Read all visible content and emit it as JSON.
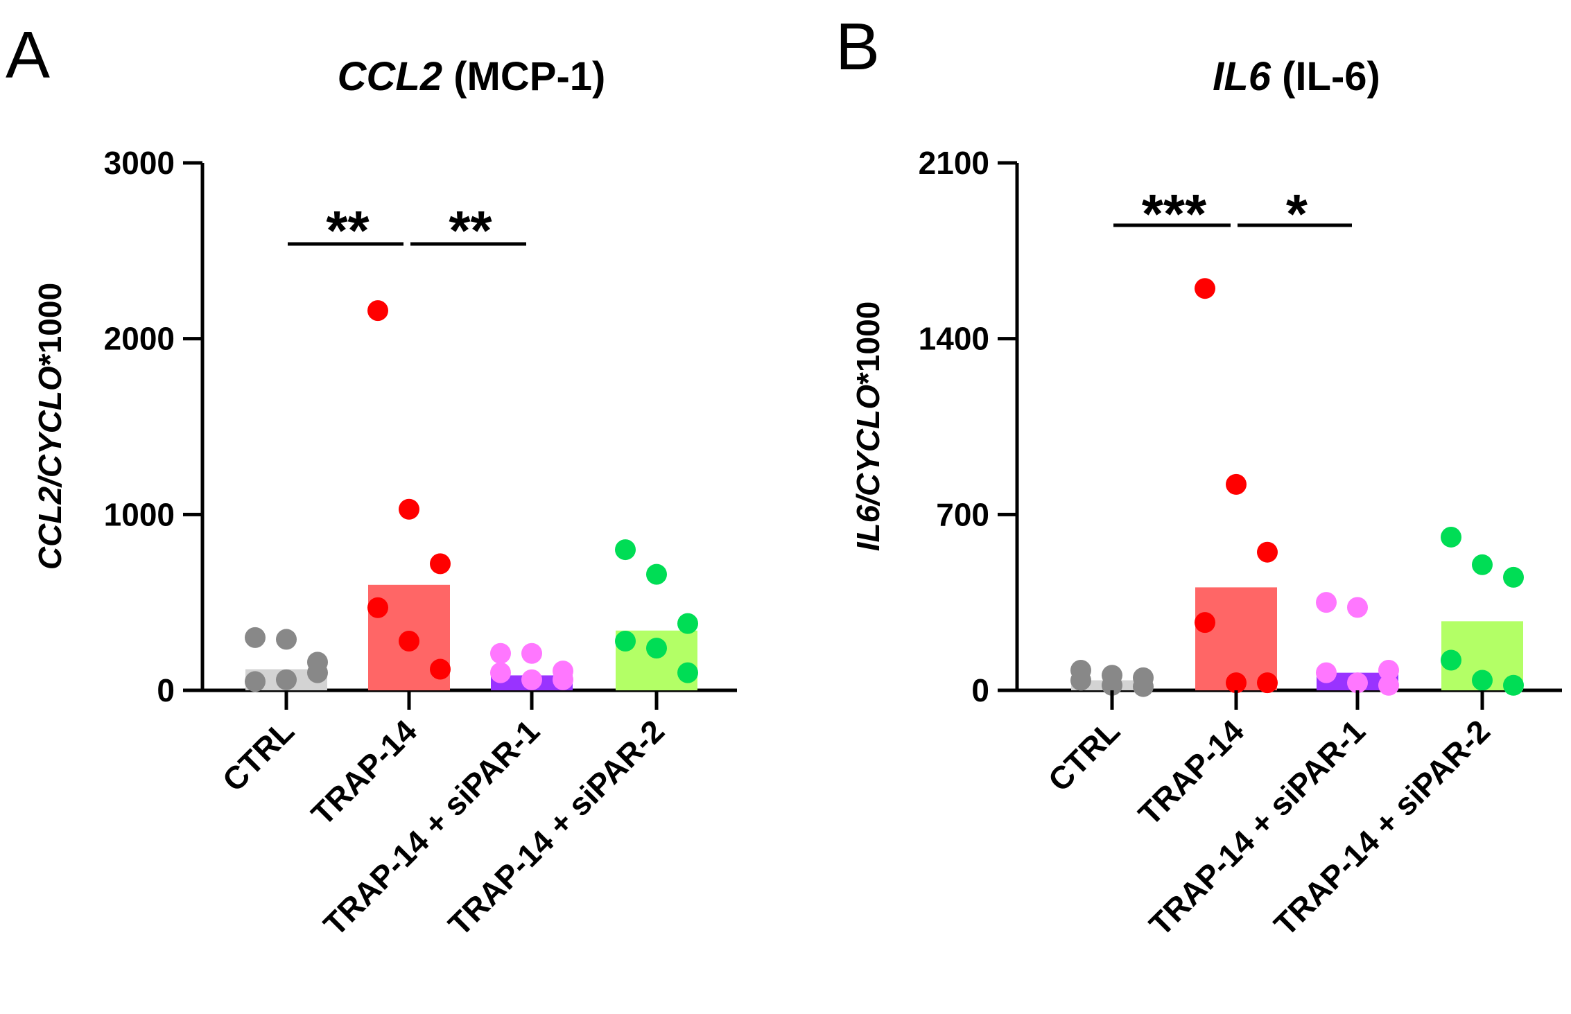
{
  "figure": {
    "panels": [
      {
        "letter": "A",
        "title_italic": "CCL2",
        "title_rest": " (MCP-1)",
        "ylabel_italic": "CCL2/CYCLO",
        "ylabel_rest": "*1000"
      },
      {
        "letter": "B",
        "title_italic": "IL6",
        "title_rest": " (IL-6)",
        "ylabel_italic": "IL6/CYCLO",
        "ylabel_rest": "*1000"
      }
    ]
  },
  "chart_data": [
    {
      "type": "bar",
      "panel": "A",
      "title": "CCL2 (MCP-1)",
      "ylabel": "CCL2/CYCLO*1000",
      "xlabel": "",
      "ylim": [
        0,
        3000
      ],
      "yticks": [
        "0",
        "1000",
        "2000",
        "3000"
      ],
      "categories": [
        "CTRL",
        "TRAP-14",
        "TRAP-14 + siPAR-1",
        "TRAP-14 + siPAR-2"
      ],
      "values": [
        120,
        600,
        85,
        340
      ],
      "bar_colors": [
        "#d3d3d3",
        "#ff6666",
        "#9933ff",
        "#b3ff66"
      ],
      "point_colors": [
        "#888888",
        "#ff0000",
        "#ff77ff",
        "#00dd55"
      ],
      "points": [
        [
          300,
          290,
          160,
          50,
          60,
          100
        ],
        [
          2160,
          1030,
          720,
          470,
          280,
          120
        ],
        [
          210,
          210,
          110,
          100,
          60,
          60
        ],
        [
          800,
          660,
          380,
          280,
          240,
          100
        ]
      ],
      "significance": [
        {
          "from": 0,
          "to": 1,
          "label": "**"
        },
        {
          "from": 1,
          "to": 2,
          "label": "**"
        }
      ]
    },
    {
      "type": "bar",
      "panel": "B",
      "title": "IL6 (IL-6)",
      "ylabel": "IL6/CYCLO*1000",
      "xlabel": "",
      "ylim": [
        0,
        2100
      ],
      "yticks": [
        "0",
        "700",
        "1400",
        "2100"
      ],
      "categories": [
        "CTRL",
        "TRAP-14",
        "TRAP-14 + siPAR-1",
        "TRAP-14 + siPAR-2"
      ],
      "values": [
        40,
        410,
        70,
        275
      ],
      "bar_colors": [
        "#d3d3d3",
        "#ff6666",
        "#9933ff",
        "#b3ff66"
      ],
      "point_colors": [
        "#888888",
        "#ff0000",
        "#ff77ff",
        "#00dd55"
      ],
      "points": [
        [
          80,
          60,
          50,
          40,
          20,
          15
        ],
        [
          1600,
          820,
          550,
          270,
          30,
          30
        ],
        [
          350,
          330,
          80,
          70,
          30,
          20
        ],
        [
          610,
          500,
          450,
          120,
          40,
          20
        ]
      ],
      "significance": [
        {
          "from": 0,
          "to": 1,
          "label": "***"
        },
        {
          "from": 1,
          "to": 2,
          "label": "*"
        }
      ]
    }
  ]
}
